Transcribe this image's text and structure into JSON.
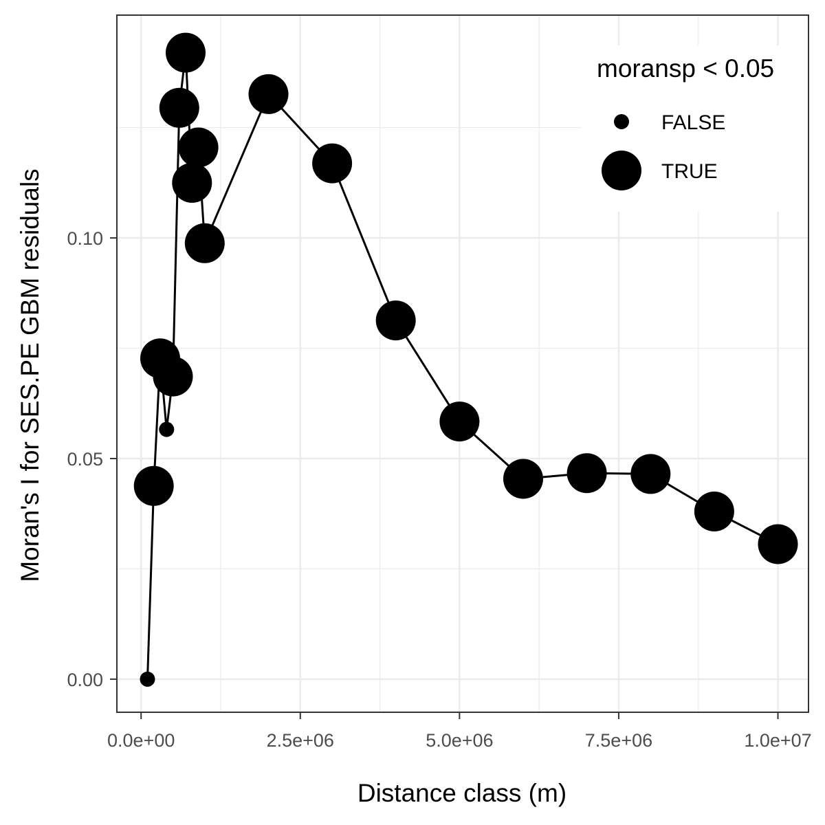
{
  "chart_data": {
    "type": "scatter",
    "xlabel": "Distance class (m)",
    "ylabel": "Moran's I for SES.PE GBM residuals",
    "xlim": [
      -380000,
      10480000
    ],
    "ylim": [
      -0.0075,
      0.1505
    ],
    "x_ticks": [
      0,
      2500000,
      5000000,
      7500000,
      10000000
    ],
    "x_tick_labels": [
      "0.0e+00",
      "2.5e+06",
      "5.0e+06",
      "7.5e+06",
      "1.0e+07"
    ],
    "y_ticks": [
      0.0,
      0.05,
      0.1
    ],
    "y_tick_labels": [
      "0.00",
      "0.05",
      "0.10"
    ],
    "grid": true,
    "legend": {
      "title": "moransp < 0.05",
      "placement": "top-right",
      "entries": [
        {
          "label": "FALSE",
          "size": "small"
        },
        {
          "label": "TRUE",
          "size": "large"
        }
      ]
    },
    "x": [
      100000,
      200000,
      300000,
      400000,
      500000,
      600000,
      700000,
      800000,
      900000,
      1000000,
      2000000,
      3000000,
      4000000,
      5000000,
      6000000,
      7000000,
      8000000,
      9000000,
      10000000
    ],
    "y": [
      0.0,
      0.0438,
      0.0727,
      0.0566,
      0.0686,
      0.1295,
      0.142,
      0.1125,
      0.1205,
      0.0988,
      0.1326,
      0.1169,
      0.0813,
      0.0584,
      0.0454,
      0.0467,
      0.0465,
      0.038,
      0.0306
    ],
    "significant": [
      false,
      true,
      true,
      false,
      true,
      true,
      true,
      true,
      true,
      true,
      true,
      true,
      true,
      true,
      true,
      true,
      true,
      true,
      true
    ]
  }
}
